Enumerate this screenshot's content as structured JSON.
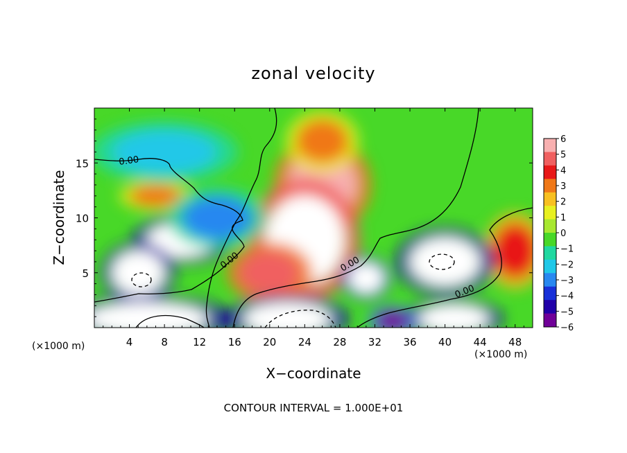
{
  "chart_data": {
    "type": "heatmap",
    "title": "zonal velocity",
    "xlabel": "X−coordinate",
    "ylabel": "Z−coordinate",
    "x_unit_left": "(×1000 m)",
    "x_unit_right": "(×1000 m)",
    "xlim": [
      0,
      50
    ],
    "ylim": [
      0,
      20
    ],
    "x_ticks": [
      4,
      8,
      12,
      16,
      20,
      24,
      28,
      32,
      36,
      40,
      44,
      48
    ],
    "y_ticks": [
      5,
      10,
      15
    ],
    "colorbar": {
      "range": [
        -6,
        6
      ],
      "ticks": [
        "6",
        "5",
        "4",
        "3",
        "2",
        "1",
        "0",
        "−1",
        "−2",
        "−3",
        "−4",
        "−5",
        "−6"
      ],
      "colors": [
        "#f8b0b0",
        "#f06060",
        "#e81818",
        "#f07818",
        "#f8c020",
        "#e8f020",
        "#a8e830",
        "#48d828",
        "#20d8a0",
        "#20c8e8",
        "#2888f0",
        "#1830d8",
        "#2000a8",
        "#700098"
      ],
      "saturation": "#ffffff"
    },
    "contour_interval": "CONTOUR INTERVAL = 1.000E+01",
    "contour_labels": [
      "0.00",
      "0.00",
      "0.00",
      "0.00"
    ],
    "features": [
      {
        "x": 26,
        "z": 13,
        "value": 6,
        "radius_x": 4,
        "radius_z": 3.2
      },
      {
        "x": 24,
        "z": 8,
        "value": 9,
        "radius_x": 4.5,
        "radius_z": 4
      },
      {
        "x": 20,
        "z": 5,
        "value": 5,
        "radius_x": 3.5,
        "radius_z": 2
      },
      {
        "x": 26,
        "z": 17,
        "value": 3,
        "radius_x": 3,
        "radius_z": 2
      },
      {
        "x": 7,
        "z": 12,
        "value": 3,
        "radius_x": 3,
        "radius_z": 1
      },
      {
        "x": 48,
        "z": 7,
        "value": 4,
        "radius_x": 2.5,
        "radius_z": 2.5
      },
      {
        "x": 10,
        "z": 8,
        "value": -9,
        "radius_x": 4,
        "radius_z": 1.6
      },
      {
        "x": 5,
        "z": 5,
        "value": -9,
        "radius_x": 3,
        "radius_z": 2
      },
      {
        "x": 40,
        "z": 6,
        "value": -9,
        "radius_x": 4,
        "radius_z": 2.2
      },
      {
        "x": 31,
        "z": 4.5,
        "value": -7,
        "radius_x": 2,
        "radius_z": 1.4
      },
      {
        "x": 14,
        "z": 10,
        "value": -3,
        "radius_x": 4,
        "radius_z": 2
      },
      {
        "x": 8,
        "z": 16,
        "value": -2,
        "radius_x": 6,
        "radius_z": 2
      },
      {
        "x": 6,
        "z": 0.8,
        "value": -9,
        "radius_x": 7,
        "radius_z": 1.5
      },
      {
        "x": 22,
        "z": 0.8,
        "value": -9,
        "radius_x": 5,
        "radius_z": 1.5
      },
      {
        "x": 41,
        "z": 0.8,
        "value": -9,
        "radius_x": 4,
        "radius_z": 1.3
      },
      {
        "x": 34,
        "z": 0.6,
        "value": -6,
        "radius_x": 2,
        "radius_z": 1
      }
    ]
  }
}
